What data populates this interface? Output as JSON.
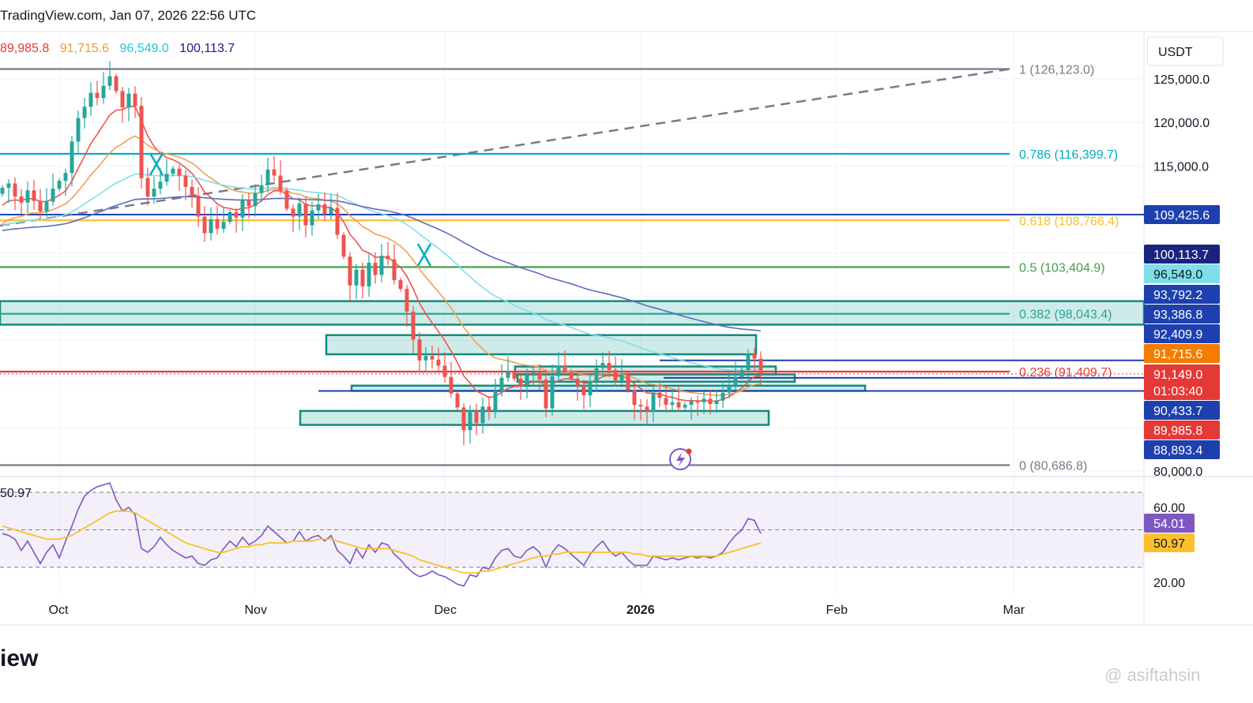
{
  "header": {
    "source": "TradingView.com, Jan 07, 2026 22:56 UTC"
  },
  "watermark": "@ asiftahsin",
  "footer_text": "iew",
  "ma_legend": [
    {
      "text": "89,985.8",
      "color": "#e53935"
    },
    {
      "text": "91,715.6",
      "color": "#ef9a3c"
    },
    {
      "text": "96,549.0",
      "color": "#26c6da"
    },
    {
      "text": "100,113.7",
      "color": "#1a237e"
    }
  ],
  "colors": {
    "up": "#26a69a",
    "down": "#ef5350",
    "ema_fast": "#ef5350",
    "ema_mid": "#f0a050",
    "ema_slow": "#80deea",
    "ema_long": "#5c6bc0",
    "rsi": "#7e57c2",
    "rsi_ma": "#fbc02d"
  },
  "chart_data": [
    {
      "type": "candlestick",
      "title": "",
      "currency_label": "USDT",
      "y_ticks": [
        "125,000.0",
        "120,000.0",
        "115,000.0",
        "80,000.0"
      ],
      "y_range": [
        79000,
        128500
      ],
      "x_ticks": [
        "Oct",
        "Nov",
        "Dec",
        "2026",
        "Feb",
        "Mar"
      ],
      "x_tick_dates": [
        "2025-10-01",
        "2025-11-01",
        "2025-12-01",
        "2026-01-01",
        "2026-02-01",
        "2026-03-01"
      ],
      "x_range": [
        "2025-09-22",
        "2026-03-21"
      ],
      "candles_close": [
        112500,
        113000,
        111500,
        110800,
        112200,
        111000,
        109800,
        110900,
        112400,
        113300,
        114200,
        117800,
        120500,
        121800,
        123400,
        122800,
        124200,
        125300,
        123600,
        121700,
        123300,
        121900,
        113600,
        111500,
        112400,
        113200,
        114100,
        114700,
        113900,
        112600,
        111600,
        109200,
        107300,
        108900,
        107800,
        108600,
        109700,
        109100,
        111100,
        110400,
        111900,
        112800,
        114600,
        113900,
        112200,
        110100,
        109200,
        110700,
        108200,
        109900,
        110600,
        109500,
        110200,
        107100,
        104600,
        101300,
        103100,
        101200,
        103900,
        102500,
        104700,
        104300,
        101900,
        100900,
        98300,
        95100,
        92700,
        93200,
        92800,
        92100,
        90800,
        88900,
        87300,
        84700,
        86900,
        85500,
        87400,
        86900,
        89200,
        90700,
        91400,
        90600,
        89900,
        91100,
        91300,
        90500,
        87200,
        90900,
        92100,
        91400,
        90600,
        89800,
        88700,
        90300,
        91800,
        92400,
        91600,
        90400,
        91100,
        89300,
        87600,
        87400,
        86800,
        89000,
        88400,
        87600,
        87900,
        87300,
        87600,
        88000,
        87900,
        88300,
        87700,
        88100,
        89000,
        89800,
        90800,
        91600,
        93500,
        92900,
        91200
      ],
      "candle_labels_visible": [
        "90,433.7",
        "88,893.4"
      ],
      "fib_levels": [
        {
          "label": "1 (126,123.0)",
          "price": 126123.0,
          "color": "#787b86"
        },
        {
          "label": "0.786 (116,399.7)",
          "price": 116399.7,
          "color": "#00acc1"
        },
        {
          "label": "0.618 (108,766.4)",
          "price": 108766.4,
          "color": "#fbc02d"
        },
        {
          "label": "0.5 (103,404.9)",
          "price": 103404.9,
          "color": "#43a047"
        },
        {
          "label": "0.382 (98,043.4)",
          "price": 98043.4,
          "color": "#26a69a"
        },
        {
          "label": "0.236 (91,409.7)",
          "price": 91409.7,
          "color": "#e53935"
        },
        {
          "label": "0 (80,686.8)",
          "price": 80686.8,
          "color": "#787b86"
        }
      ],
      "zones": [
        {
          "top": 99500,
          "bottom": 96800
        },
        {
          "top": 95600,
          "bottom": 93400
        },
        {
          "top": 92000,
          "bottom": 91100
        },
        {
          "top": 91100,
          "bottom": 90250
        },
        {
          "top": 89800,
          "bottom": 89200
        },
        {
          "top": 86900,
          "bottom": 85300
        }
      ],
      "horizontal_lines": [
        {
          "price": 109425.6,
          "color": "#1e40af"
        },
        {
          "price": 92700,
          "color": "#1e40af"
        },
        {
          "price": 90700,
          "color": "#1e40af"
        },
        {
          "price": 89200,
          "color": "#1e40af"
        }
      ],
      "price_tags": [
        {
          "text": "109,425.6",
          "price": 109425.6,
          "bg": "#1e40af",
          "fg": "#ffffff"
        },
        {
          "text": "100,113.7",
          "price": 100113.7,
          "bg": "#1a237e",
          "fg": "#ffffff"
        },
        {
          "text": "96,549.0",
          "price": 96549.0,
          "bg": "#80deea",
          "fg": "#131722"
        },
        {
          "text": "93,792.2",
          "price": 93792.2,
          "bg": "#1e40af",
          "fg": "#ffffff"
        },
        {
          "text": "93,386.8",
          "price": 93386.8,
          "bg": "#1e40af",
          "fg": "#ffffff"
        },
        {
          "text": "92,409.9",
          "price": 92409.9,
          "bg": "#1e40af",
          "fg": "#ffffff"
        },
        {
          "text": "91,715.6",
          "price": 91715.6,
          "bg": "#f57c00",
          "fg": "#ffffff"
        },
        {
          "text": "91,149.0",
          "price": 91149.0,
          "bg": "#e53935",
          "fg": "#ffffff"
        },
        {
          "text": "01:03:40",
          "price": 90750,
          "bg": "#e53935",
          "fg": "#ffffff"
        },
        {
          "text": "90,433.7",
          "price": 90433.7,
          "bg": "#1e40af",
          "fg": "#ffffff"
        },
        {
          "text": "89,985.8",
          "price": 89985.8,
          "bg": "#e53935",
          "fg": "#ffffff"
        },
        {
          "text": "88,893.4",
          "price": 88893.4,
          "bg": "#1e40af",
          "fg": "#ffffff"
        }
      ]
    },
    {
      "type": "line",
      "title": "",
      "y_ticks": [
        "60.00",
        "20.00"
      ],
      "y_range": [
        15,
        80
      ],
      "band_levels": [
        70,
        50,
        30
      ],
      "series": [
        {
          "name": "",
          "values": [
            48,
            47,
            45,
            39,
            44,
            38,
            32,
            38,
            42,
            35,
            44,
            52,
            61,
            68,
            71,
            73,
            74,
            75,
            66,
            60,
            62,
            58,
            40,
            38,
            41,
            46,
            42,
            39,
            37,
            35,
            36,
            32,
            31,
            34,
            35,
            40,
            44,
            41,
            46,
            42,
            44,
            47,
            52,
            49,
            46,
            43,
            44,
            49,
            44,
            46,
            47,
            44,
            47,
            39,
            36,
            32,
            40,
            35,
            42,
            38,
            43,
            42,
            37,
            34,
            30,
            27,
            25,
            26,
            28,
            26,
            25,
            23,
            21,
            20,
            26,
            25,
            30,
            29,
            35,
            39,
            40,
            36,
            35,
            39,
            41,
            38,
            30,
            38,
            42,
            40,
            37,
            34,
            31,
            37,
            41,
            44,
            39,
            36,
            38,
            34,
            31,
            31,
            31,
            36,
            35,
            34,
            35,
            34,
            35,
            36,
            35,
            36,
            35,
            36,
            38,
            43,
            47,
            50,
            56,
            55,
            48
          ],
          "color": "#7e57c2"
        },
        {
          "name": "",
          "values": [
            52,
            51,
            50,
            49,
            48,
            47,
            46,
            45,
            45,
            45,
            46,
            47,
            49,
            51,
            53,
            55,
            57,
            59,
            60,
            60,
            60,
            59,
            57,
            55,
            53,
            51,
            49,
            47,
            45,
            43,
            42,
            41,
            40,
            39,
            38,
            38,
            39,
            40,
            41,
            41,
            42,
            42,
            43,
            43,
            43,
            43,
            44,
            44,
            44,
            44,
            45,
            45,
            45,
            44,
            43,
            42,
            41,
            40,
            40,
            40,
            40,
            40,
            39,
            38,
            37,
            36,
            34,
            33,
            32,
            31,
            30,
            29,
            28,
            27,
            27,
            27,
            28,
            28,
            29,
            30,
            31,
            32,
            33,
            34,
            35,
            36,
            36,
            37,
            37,
            38,
            38,
            38,
            38,
            38,
            38,
            38,
            38,
            38,
            38,
            38,
            37,
            37,
            36,
            36,
            36,
            36,
            36,
            36,
            36,
            36,
            36,
            36,
            36,
            36,
            37,
            38,
            39,
            40,
            41,
            42,
            43
          ],
          "color": "#fbc02d"
        }
      ],
      "top_left_value": "50.97",
      "value_tags": [
        {
          "text": "54.01",
          "value": 54.01,
          "bg": "#7e57c2",
          "fg": "#ffffff"
        },
        {
          "text": "50.97",
          "value": 50.97,
          "bg": "#fbc02d",
          "fg": "#131722"
        }
      ]
    }
  ]
}
